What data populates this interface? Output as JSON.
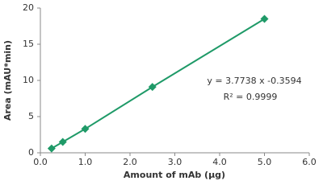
{
  "chart_data": {
    "type": "scatter",
    "x_label": "Amount of mAb (µg)",
    "y_label": "Area  (mAU*min)",
    "annotations": [
      "y = 3.7738 x -0.3594",
      "R² = 0.9999"
    ],
    "series": [
      {
        "color": "#1f9a68",
        "x": [
          0.25,
          0.5,
          1.0,
          2.5,
          5.0
        ],
        "values": [
          0.6,
          1.5,
          3.3,
          9.1,
          18.5
        ]
      }
    ],
    "xlim": [
      0,
      6
    ],
    "ylim": [
      0,
      20
    ],
    "xticks": [
      {
        "value": 0,
        "label": "0.0"
      },
      {
        "value": 1,
        "label": "1.0"
      },
      {
        "value": 2,
        "label": "2.0"
      },
      {
        "value": 3,
        "label": "3.0"
      },
      {
        "value": 4,
        "label": "4.0"
      },
      {
        "value": 5,
        "label": "5.0"
      },
      {
        "value": 6,
        "label": "6.0"
      }
    ],
    "yticks": [
      0,
      5,
      10,
      15,
      20
    ],
    "grid": false
  }
}
